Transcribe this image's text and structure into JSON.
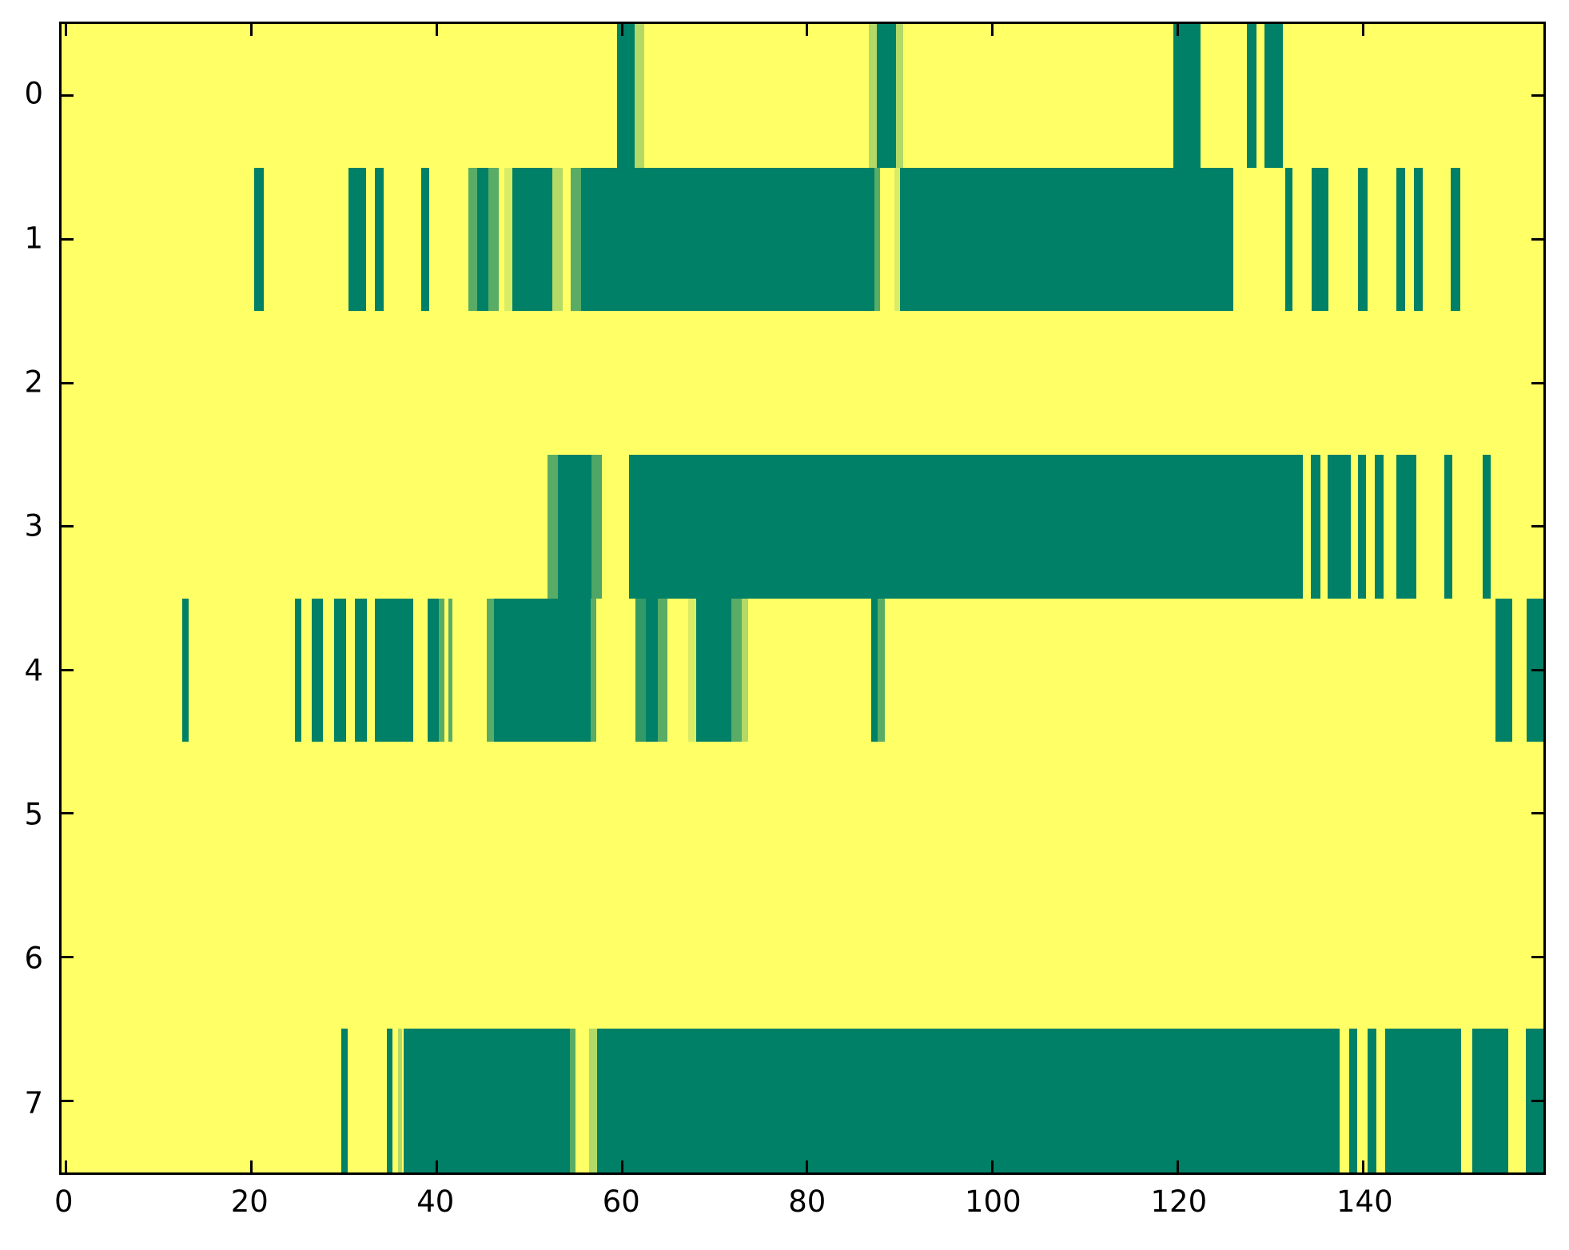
{
  "figure": {
    "background": "#ffffff",
    "plot_background": "#ffff66",
    "axis_color": "#000000",
    "colormap_low": "#008066",
    "colormap_high": "#ffff66"
  },
  "chart_data": {
    "type": "heatmap",
    "title": "",
    "xlabel": "",
    "ylabel": "",
    "colormap": "summer",
    "grid": false,
    "x_range": [
      0,
      160
    ],
    "x_tick_values": [
      0,
      20,
      40,
      60,
      80,
      100,
      120,
      140
    ],
    "x_tick_labels": [
      "0",
      "20",
      "40",
      "60",
      "80",
      "100",
      "120",
      "140"
    ],
    "y_tick_values": [
      0,
      1,
      2,
      3,
      4,
      5,
      6,
      7
    ],
    "y_tick_labels": [
      "0",
      "1",
      "2",
      "3",
      "4",
      "5",
      "6",
      "7"
    ],
    "n_rows": 8,
    "value_legend": "segments are [x_start, x_end, colormap_value]; value 0 = dark teal, 1 = yellow background",
    "rows": [
      {
        "y": 0,
        "segments": [
          [
            60.0,
            61.9,
            0
          ],
          [
            61.9,
            62.9,
            0.7
          ],
          [
            87.2,
            88.0,
            0.7
          ],
          [
            88.0,
            90.1,
            0
          ],
          [
            90.1,
            90.9,
            0.7
          ],
          [
            120.0,
            123.0,
            0
          ],
          [
            128.0,
            129.0,
            0
          ],
          [
            129.9,
            131.9,
            0
          ]
        ]
      },
      {
        "y": 1,
        "segments": [
          [
            20.8,
            21.8,
            0
          ],
          [
            31.0,
            32.9,
            0
          ],
          [
            33.8,
            34.8,
            0
          ],
          [
            38.8,
            39.7,
            0
          ],
          [
            43.9,
            44.9,
            0.35
          ],
          [
            44.9,
            46.1,
            0
          ],
          [
            46.1,
            47.2,
            0.35
          ],
          [
            47.8,
            48.7,
            0.85
          ],
          [
            48.7,
            53.0,
            0
          ],
          [
            53.0,
            54.1,
            0.7
          ],
          [
            55.0,
            56.1,
            0.35
          ],
          [
            56.1,
            87.8,
            0
          ],
          [
            87.8,
            88.4,
            0.35
          ],
          [
            89.9,
            90.5,
            0.85
          ],
          [
            90.5,
            126.5,
            0
          ],
          [
            132.1,
            132.9,
            0
          ],
          [
            135.0,
            136.8,
            0
          ],
          [
            140.0,
            141.0,
            0
          ],
          [
            144.1,
            145.1,
            0
          ],
          [
            146.0,
            147.0,
            0
          ],
          [
            150.0,
            151.0,
            0
          ]
        ]
      },
      {
        "y": 2,
        "segments": []
      },
      {
        "y": 3,
        "segments": [
          [
            52.5,
            53.6,
            0.35
          ],
          [
            53.6,
            57.2,
            0
          ],
          [
            57.2,
            58.3,
            0.3
          ],
          [
            61.3,
            134.0,
            0
          ],
          [
            134.9,
            135.9,
            0
          ],
          [
            136.7,
            139.2,
            0
          ],
          [
            140.0,
            140.8,
            0
          ],
          [
            141.8,
            142.7,
            0
          ],
          [
            144.1,
            146.3,
            0
          ],
          [
            149.3,
            150.2,
            0
          ],
          [
            153.4,
            154.3,
            0
          ]
        ]
      },
      {
        "y": 4,
        "segments": [
          [
            13.0,
            13.7,
            0
          ],
          [
            25.2,
            25.9,
            0
          ],
          [
            27.0,
            28.2,
            0
          ],
          [
            29.4,
            30.7,
            0
          ],
          [
            31.7,
            33.0,
            0
          ],
          [
            33.8,
            38.0,
            0
          ],
          [
            39.5,
            40.7,
            0
          ],
          [
            40.7,
            41.3,
            0.35
          ],
          [
            41.8,
            42.2,
            0.35
          ],
          [
            45.9,
            46.7,
            0.35
          ],
          [
            46.7,
            57.1,
            0
          ],
          [
            57.1,
            57.7,
            0.35
          ],
          [
            62.0,
            63.1,
            0.2
          ],
          [
            63.1,
            64.4,
            0
          ],
          [
            64.4,
            65.4,
            0.35
          ],
          [
            67.7,
            68.5,
            0.85
          ],
          [
            68.5,
            72.3,
            0
          ],
          [
            72.3,
            73.4,
            0.35
          ],
          [
            73.4,
            74.1,
            0.7
          ],
          [
            87.4,
            88.1,
            0
          ],
          [
            88.1,
            88.9,
            0.35
          ],
          [
            154.8,
            156.6,
            0
          ],
          [
            158.2,
            160.0,
            0
          ]
        ]
      },
      {
        "y": 5,
        "segments": []
      },
      {
        "y": 6,
        "segments": []
      },
      {
        "y": 7,
        "segments": [
          [
            30.2,
            30.9,
            0
          ],
          [
            35.1,
            35.7,
            0
          ],
          [
            36.3,
            36.8,
            0.7
          ],
          [
            36.9,
            54.9,
            0
          ],
          [
            54.9,
            55.5,
            0.35
          ],
          [
            57.0,
            57.8,
            0.7
          ],
          [
            57.8,
            138.0,
            0
          ],
          [
            139.0,
            139.9,
            0
          ],
          [
            141.0,
            142.0,
            0
          ],
          [
            142.9,
            151.1,
            0
          ],
          [
            152.3,
            156.2,
            0
          ],
          [
            158.1,
            160.0,
            0
          ]
        ]
      }
    ]
  }
}
